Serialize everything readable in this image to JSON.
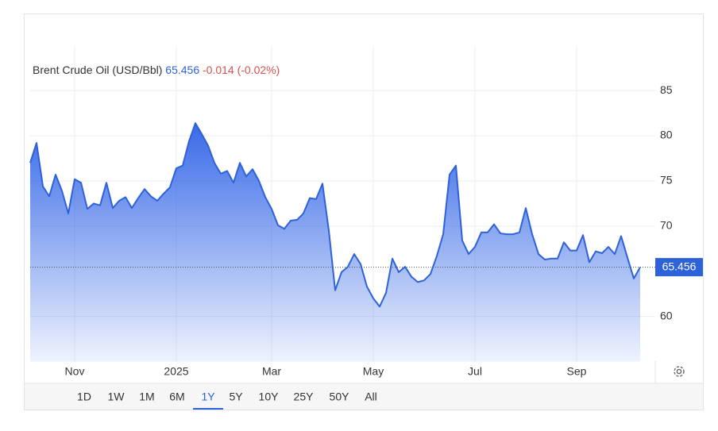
{
  "chart_data": {
    "type": "area",
    "title": "Brent Crude Oil (USD/Bbl)",
    "change": "-0.014 (-0.02%)",
    "categories": [
      null,
      null,
      null,
      null,
      null,
      null,
      null,
      "Nov",
      null,
      null,
      null,
      null,
      null,
      null,
      null,
      null,
      null,
      null,
      null,
      null,
      null,
      null,
      null,
      "2025",
      null,
      null,
      null,
      null,
      null,
      null,
      null,
      null,
      null,
      null,
      null,
      null,
      null,
      null,
      "Mar",
      null,
      null,
      null,
      null,
      null,
      null,
      null,
      null,
      null,
      null,
      null,
      null,
      null,
      null,
      null,
      "May",
      null,
      null,
      null,
      null,
      null,
      null,
      null,
      null,
      null,
      null,
      null,
      null,
      null,
      null,
      null,
      "Jul",
      null,
      null,
      null,
      null,
      null,
      null,
      null,
      null,
      null,
      null,
      null,
      null,
      null,
      null,
      null,
      "Sep",
      null,
      null,
      null,
      null,
      null,
      null,
      null,
      null,
      null,
      null
    ],
    "series": [
      {
        "name": "Brent Crude Oil (USD/Bbl)",
        "color": "#2e62d9",
        "values": [
          77.0,
          79.2,
          74.4,
          73.3,
          75.7,
          73.9,
          71.4,
          75.2,
          74.8,
          71.9,
          72.5,
          72.3,
          74.8,
          72.0,
          72.8,
          73.2,
          72.0,
          73.1,
          74.1,
          73.3,
          72.8,
          73.6,
          74.3,
          76.4,
          76.7,
          79.4,
          81.4,
          80.2,
          78.9,
          77.0,
          75.8,
          76.1,
          74.8,
          77.0,
          75.5,
          76.3,
          75.0,
          73.2,
          71.9,
          70.1,
          69.7,
          70.6,
          70.7,
          71.4,
          73.1,
          73.0,
          74.7,
          69.5,
          62.9,
          64.9,
          65.5,
          66.9,
          65.8,
          63.3,
          62.0,
          61.1,
          62.6,
          66.4,
          64.9,
          65.5,
          64.4,
          63.8,
          64.0,
          64.7,
          66.7,
          69.1,
          75.7,
          76.7,
          68.4,
          66.9,
          67.7,
          69.3,
          69.3,
          70.2,
          69.2,
          69.1,
          69.1,
          69.3,
          72.0,
          69.1,
          66.9,
          66.3,
          66.4,
          66.4,
          68.2,
          67.3,
          67.3,
          69.0,
          66.0,
          67.2,
          67.0,
          67.7,
          66.9,
          68.9,
          66.5,
          64.2,
          65.456
        ]
      }
    ],
    "ylim": [
      55,
      90
    ],
    "yticks": [
      60,
      70,
      75,
      80,
      85
    ],
    "grid": true,
    "ranges": [
      "1D",
      "1W",
      "1M",
      "6M",
      "1Y",
      "5Y",
      "10Y",
      "25Y",
      "50Y",
      "All"
    ],
    "active_range": "1Y"
  }
}
